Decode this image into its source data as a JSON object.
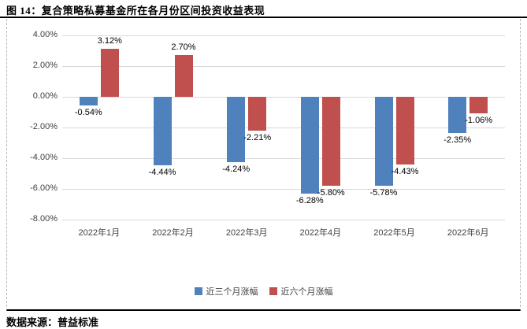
{
  "figure": {
    "title": "图 14：复合策略私募基金所在各月份区间投资收益表现",
    "source_note": "数据来源：普益标准"
  },
  "chart_data": {
    "type": "bar",
    "title": "复合策略私募基金所在各月份区间投资收益表现",
    "categories": [
      "2022年1月",
      "2022年2月",
      "2022年3月",
      "2022年4月",
      "2022年5月",
      "2022年6月"
    ],
    "series": [
      {
        "name": "近三个月涨幅",
        "color": "#4F81BD",
        "values": [
          -0.54,
          -4.44,
          -4.24,
          -6.28,
          -5.78,
          -2.35
        ],
        "labels": [
          "-0.54%",
          "-4.44%",
          "-4.24%",
          "-6.28%",
          "-5.78%",
          "-2.35%"
        ]
      },
      {
        "name": "近六个月涨幅",
        "color": "#C0504D",
        "values": [
          3.12,
          2.7,
          -2.21,
          -5.8,
          -4.43,
          -1.06
        ],
        "labels": [
          "3.12%",
          "2.70%",
          "-2.21%",
          "-5.80%",
          "-4.43%",
          "-1.06%"
        ]
      }
    ],
    "y_ticks": [
      "4.00%",
      "2.00%",
      "0.00%",
      "-2.00%",
      "-4.00%",
      "-6.00%",
      "-8.00%"
    ],
    "ylim": [
      -8,
      4
    ],
    "y_step": 2,
    "value_suffix": "%",
    "grid": true,
    "legend_position": "bottom",
    "colors": {
      "gridline": "#D9D9D9",
      "box_border_dashed": "#B7B7B7",
      "rule": "#000000",
      "axis_text": "#404040"
    }
  }
}
